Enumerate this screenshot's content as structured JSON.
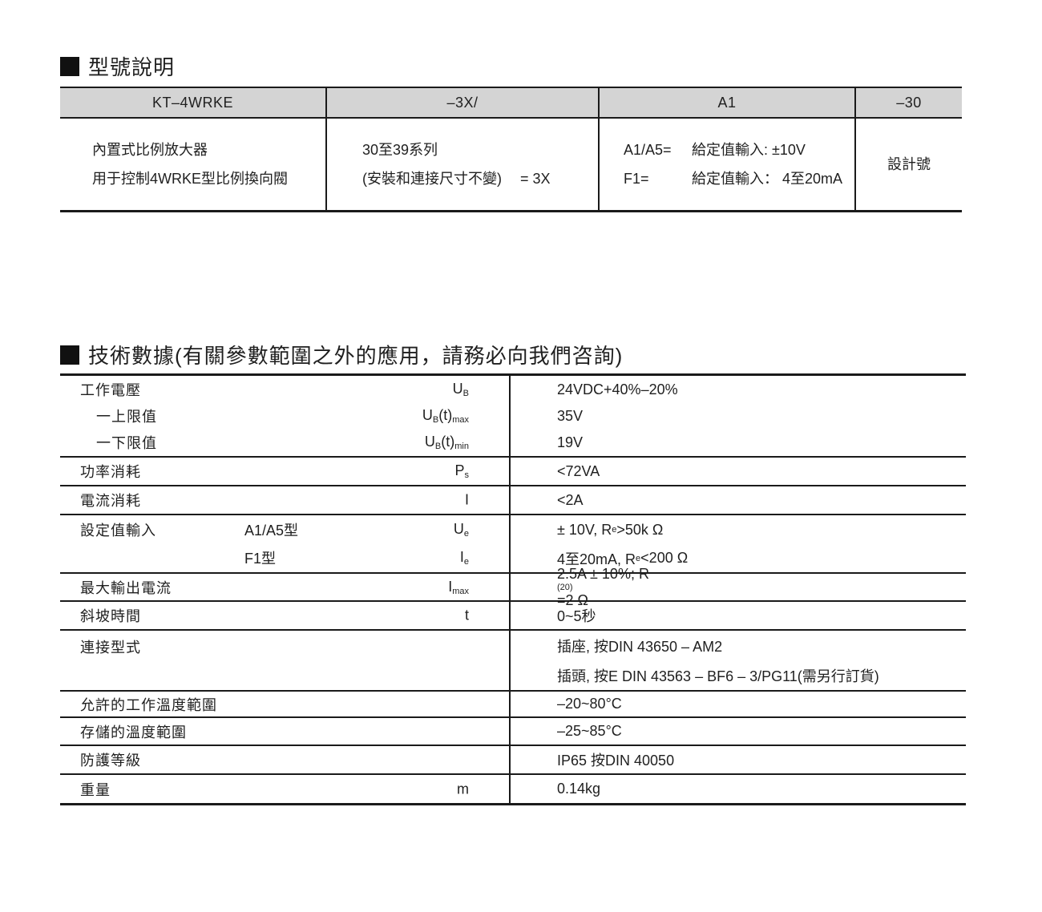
{
  "colors": {
    "text": "#1f1f1f",
    "table_line": "#1a1a1a",
    "model_table_header_bg": "#d4d4d4"
  },
  "section_model": {
    "title": "型號說明",
    "table": {
      "headers": [
        "KT–4WRKE",
        "–3X/",
        "A1",
        "–30"
      ],
      "col1_lines": [
        "內置式比例放大器",
        "用于控制4WRKE型比例換向閥"
      ],
      "col2_line1": "30至39系列",
      "col2_line2": "(安裝和連接尺寸不變)",
      "col2_line2_eq": "= 3X",
      "col3_lines": [
        {
          "code": "A1/A5=",
          "desc": "給定值輸入: ±10V"
        },
        {
          "code": "F1=",
          "desc": "給定值輸入： 4至20mA"
        }
      ],
      "col4": "設計號"
    }
  },
  "section_tech": {
    "title": "技術數據(有關參數範圍之外的應用，請務必向我們咨詢)",
    "rows": {
      "supply": {
        "lines": [
          {
            "label": "工作電壓",
            "sym": "U~B~",
            "val": "24VDC+40%–20%"
          },
          {
            "label": "一上限值",
            "sym": "U~B~(t)~max~",
            "val": "35V"
          },
          {
            "label": "一下限值",
            "sym": "U~B~(t)~min~",
            "val": "19V"
          }
        ]
      },
      "power": {
        "label": "功率消耗",
        "sym": "P~s~",
        "val": "<72VA"
      },
      "current": {
        "label": "電流消耗",
        "sym": "I",
        "val": "<2A"
      },
      "setpoint": {
        "label": "設定值輸入",
        "lines": [
          {
            "type": "A1/A5型",
            "sym": "U~e~",
            "val": "± 10V, R~e~>50k Ω"
          },
          {
            "type": "F1型",
            "sym": "I~e~",
            "val": "4至20mA, R~e~<200 Ω"
          }
        ]
      },
      "max_output": {
        "label": "最大輸出電流",
        "sym": "I~max~",
        "val": "2.5A ± 10%; R~(20)~=2 Ω"
      },
      "ramp": {
        "label": "斜坡時間",
        "sym": "t",
        "val": "0~5秒"
      },
      "connection": {
        "label": "連接型式",
        "vals": [
          "插座, 按DIN 43650 – AM2",
          "插頭, 按E DIN 43563 – BF6 – 3/PG11(需另行訂貨)"
        ]
      },
      "op_temp": {
        "label": "允許的工作溫度範圍",
        "val": "–20~80°C"
      },
      "storage_temp": {
        "label": "存儲的溫度範圍",
        "val": "–25~85°C"
      },
      "protection": {
        "label": "防護等級",
        "val": "IP65 按DIN 40050"
      },
      "weight": {
        "label": "重量",
        "sym": "m",
        "val": "0.14kg"
      }
    }
  }
}
